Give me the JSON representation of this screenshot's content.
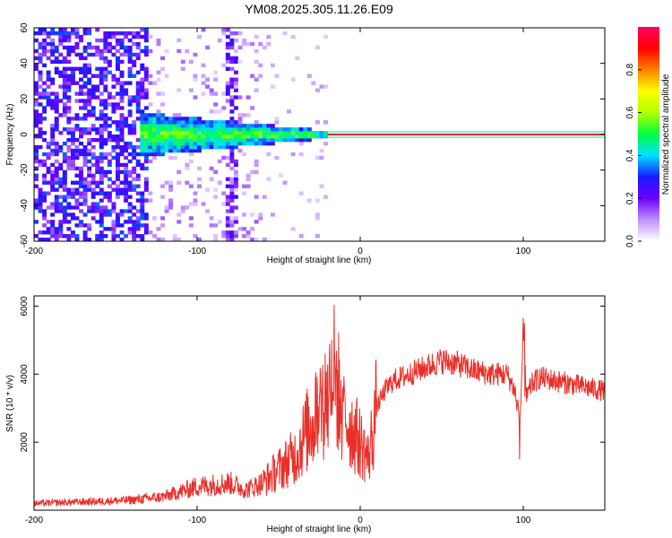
{
  "chart_data": [
    {
      "type": "heatmap",
      "title": "YM08.2025.305.11.26.E09",
      "xlabel": "Height of straight line (km)",
      "ylabel": "Frequency (Hz)",
      "xlim": [
        -200,
        150
      ],
      "ylim": [
        -60,
        60
      ],
      "x_ticks": [
        -200,
        -100,
        0,
        100
      ],
      "x_tick_labels": [
        "-200",
        "-100",
        "0",
        "100"
      ],
      "y_ticks": [
        -60,
        -40,
        -20,
        0,
        20,
        40,
        60
      ],
      "y_tick_labels": [
        "-60",
        "-40",
        "-20",
        "0",
        "20",
        "40",
        "60"
      ],
      "colorbar": {
        "label": "Normalized spectral amplitude",
        "range": [
          0,
          1
        ],
        "ticks": [
          0.0,
          0.2,
          0.4,
          0.6,
          0.8
        ],
        "tick_labels": [
          "0.0",
          "0.2",
          "0.4",
          "0.6",
          "0.8"
        ],
        "colors": [
          "#ffffff",
          "#c090ff",
          "#6a00ff",
          "#1a1aff",
          "#00e0ff",
          "#00ff40",
          "#b0ff00",
          "#ffff00",
          "#ff8000",
          "#ff0000",
          "#ff0060"
        ]
      },
      "features": {
        "ridge_frequency_hz": 0,
        "ridge_start_km": -20,
        "ridge_end_km": 150,
        "broadband_noise_range_km": [
          -200,
          -130
        ],
        "noise_streaks_km": [
          -80
        ]
      }
    },
    {
      "type": "line",
      "title": "",
      "xlabel": "Height of straight line (km)",
      "ylabel": "SNR (10 * v/v)",
      "xlim": [
        -200,
        150
      ],
      "ylim": [
        0,
        6300
      ],
      "x_ticks": [
        -200,
        -100,
        0,
        100
      ],
      "x_tick_labels": [
        "-200",
        "-100",
        "0",
        "100"
      ],
      "y_ticks": [
        2000,
        4000,
        6000
      ],
      "y_tick_labels": [
        "2000",
        "4000",
        "6000"
      ],
      "series": [
        {
          "name": "SNR",
          "color": "#e8302a",
          "x": [
            -200,
            -180,
            -160,
            -140,
            -120,
            -110,
            -100,
            -90,
            -80,
            -70,
            -60,
            -50,
            -40,
            -35,
            -30,
            -25,
            -20,
            -17,
            -15,
            -12,
            -10,
            -5,
            0,
            5,
            10,
            15,
            20,
            30,
            40,
            50,
            60,
            70,
            80,
            90,
            95,
            98,
            100,
            102,
            105,
            110,
            120,
            130,
            140,
            150
          ],
          "values": [
            200,
            230,
            260,
            300,
            400,
            550,
            700,
            750,
            800,
            600,
            800,
            1200,
            1600,
            2100,
            2600,
            3000,
            3400,
            4200,
            3800,
            3200,
            2800,
            2400,
            2000,
            1500,
            3000,
            3500,
            3800,
            4000,
            4200,
            4400,
            4300,
            4100,
            4000,
            4000,
            3500,
            2600,
            5200,
            3300,
            3700,
            3900,
            3800,
            3700,
            3600,
            3500
          ]
        }
      ]
    }
  ]
}
